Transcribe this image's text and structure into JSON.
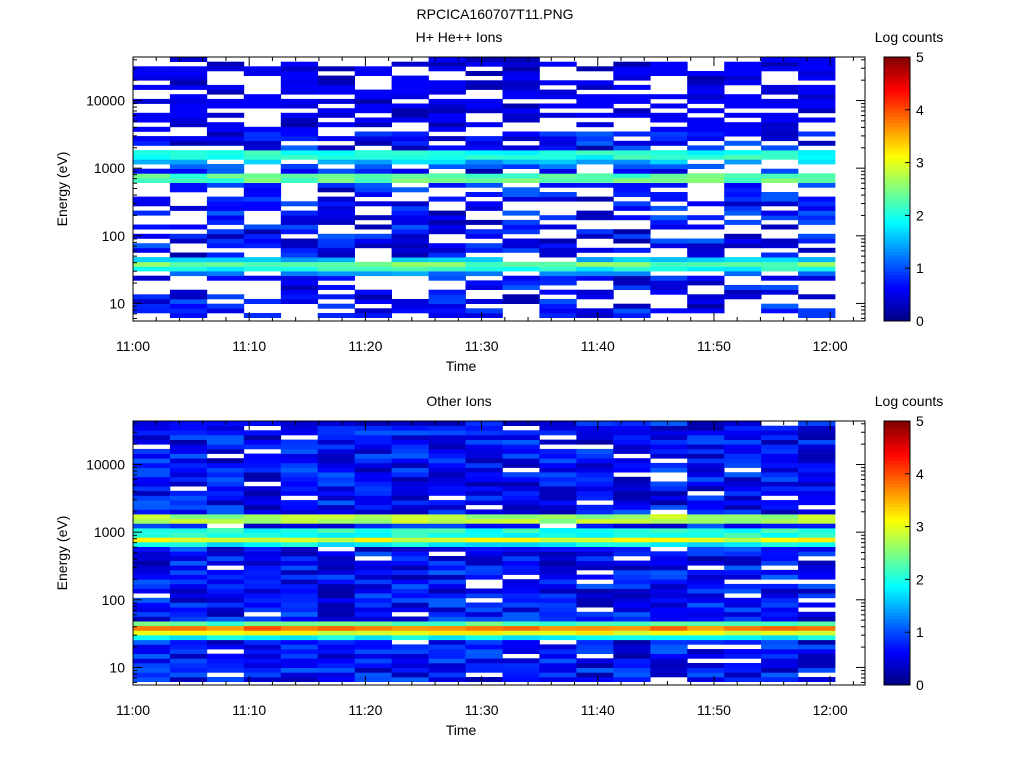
{
  "figure": {
    "title": "RPCICA160707T11.PNG"
  },
  "colors": {
    "scale": [
      "#00008f",
      "#0000ff",
      "#00ffff",
      "#ffff00",
      "#ff0000",
      "#800000"
    ]
  },
  "chart_data": [
    {
      "type": "heatmap",
      "title": "H+ He++ Ions",
      "xlabel": "Time",
      "ylabel": "Energy (eV)",
      "x_tick_labels": [
        "11:00",
        "11:10",
        "11:20",
        "11:30",
        "11:40",
        "11:50",
        "12:00"
      ],
      "y_tick_labels": [
        "10",
        "100",
        "1000",
        "10000"
      ],
      "yscale": "log",
      "ylim": [
        5.5,
        44000
      ],
      "xlim_minutes": [
        0,
        63
      ],
      "colorbar": {
        "label": "Log counts",
        "range": [
          0,
          5
        ],
        "tick_labels": [
          "0",
          "1",
          "2",
          "3",
          "4",
          "5"
        ]
      },
      "bands": [
        {
          "energy_ev": 40,
          "log_counts": 2.4
        },
        {
          "energy_ev": 33,
          "log_counts": 2.0
        },
        {
          "energy_ev": 700,
          "log_counts": 2.3
        },
        {
          "energy_ev": 1600,
          "log_counts": 2.0
        },
        {
          "energy_ev": 1250,
          "log_counts": 1.5
        }
      ],
      "sparsity": 0.38
    },
    {
      "type": "heatmap",
      "title": "Other Ions",
      "xlabel": "Time",
      "ylabel": "Energy (eV)",
      "x_tick_labels": [
        "11:00",
        "11:10",
        "11:20",
        "11:30",
        "11:40",
        "11:50",
        "12:00"
      ],
      "y_tick_labels": [
        "10",
        "100",
        "1000",
        "10000"
      ],
      "yscale": "log",
      "ylim": [
        5.5,
        44000
      ],
      "xlim_minutes": [
        0,
        63
      ],
      "colorbar": {
        "label": "Log counts",
        "range": [
          0,
          5
        ],
        "tick_labels": [
          "0",
          "1",
          "2",
          "3",
          "4",
          "5"
        ]
      },
      "bands": [
        {
          "energy_ev": 38,
          "log_counts": 3.8
        },
        {
          "energy_ev": 32,
          "log_counts": 3.0
        },
        {
          "energy_ev": 750,
          "log_counts": 3.0
        },
        {
          "energy_ev": 1600,
          "log_counts": 2.7
        },
        {
          "energy_ev": 1000,
          "log_counts": 2.0
        }
      ],
      "sparsity": 0.08
    }
  ]
}
